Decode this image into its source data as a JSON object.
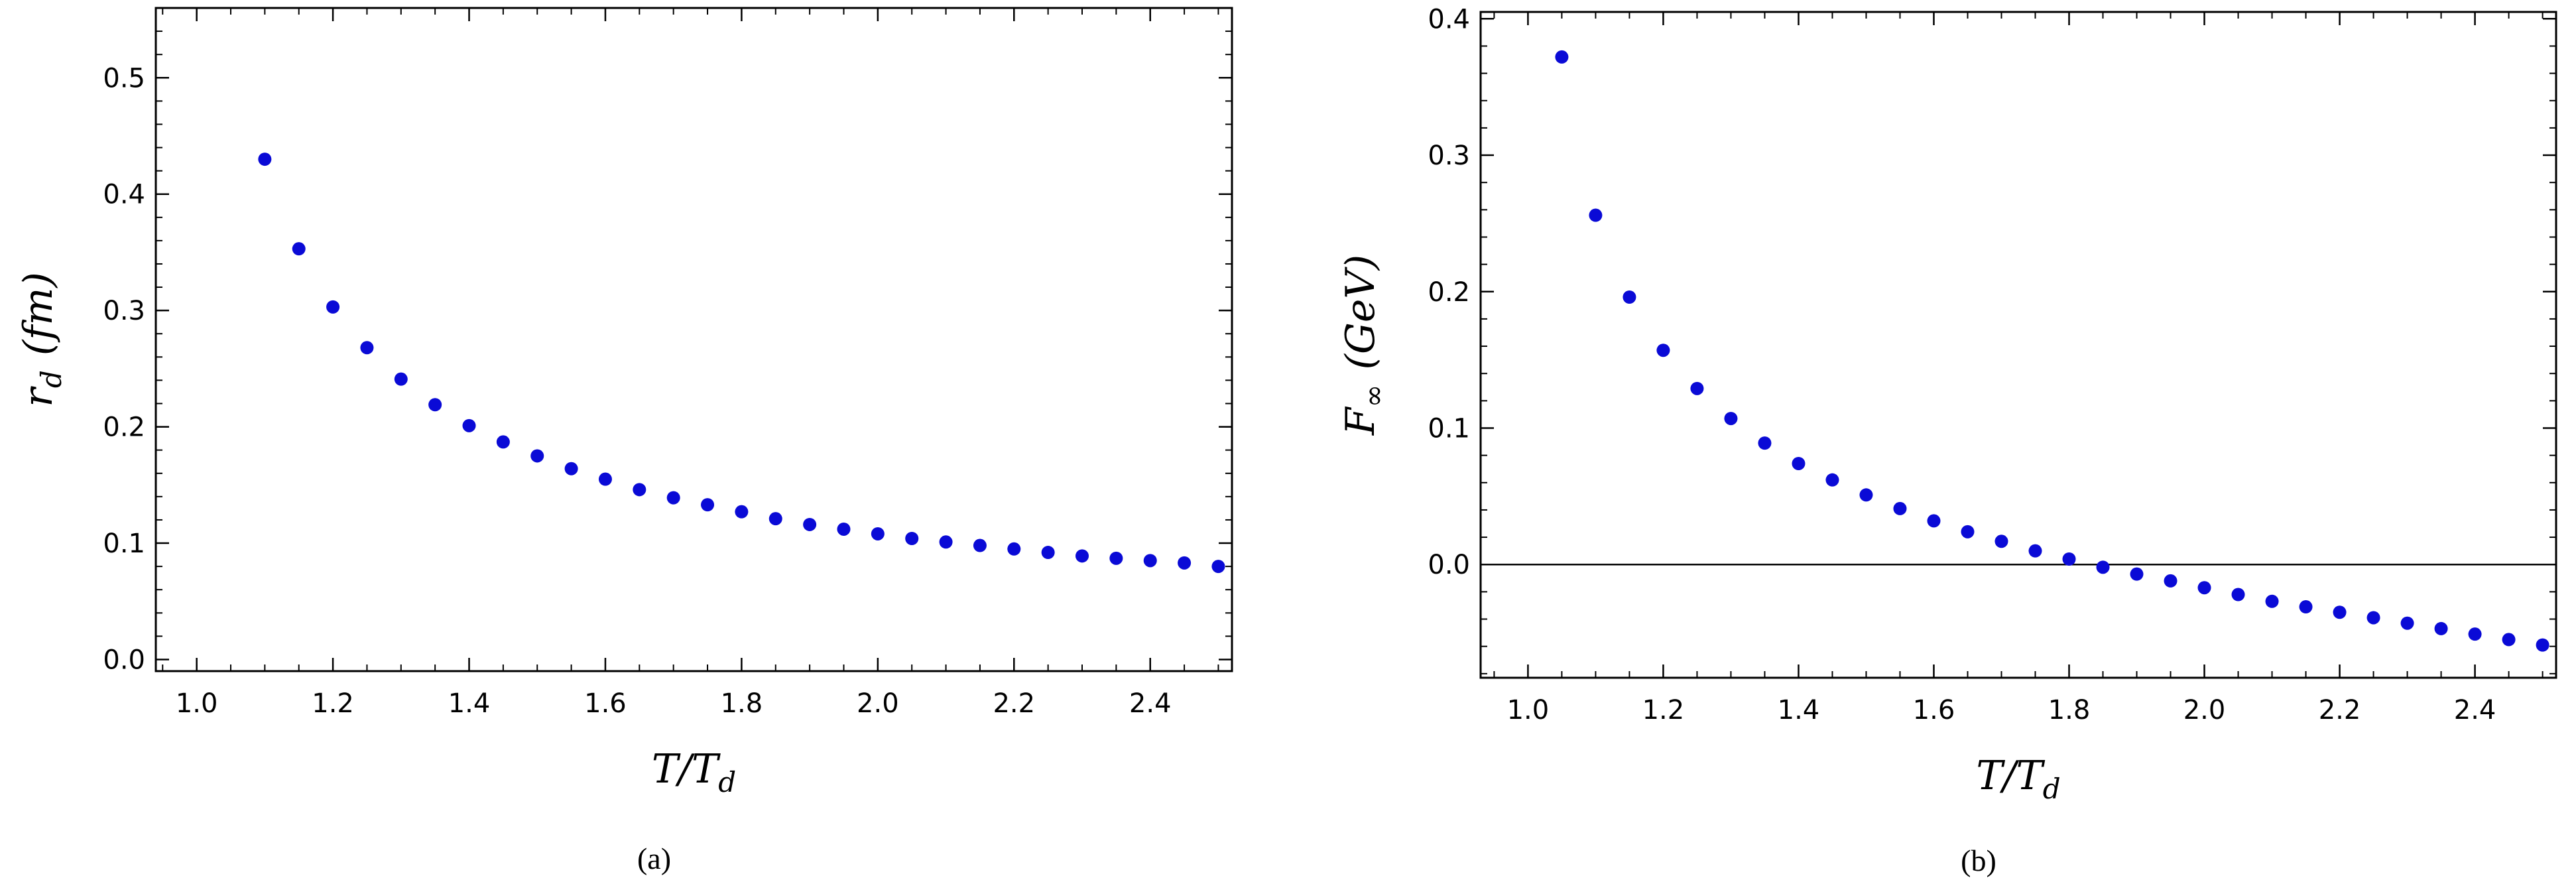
{
  "chart_data": [
    {
      "type": "scatter",
      "caption": "(a)",
      "x_label_main": "T/T",
      "x_label_sub": "d",
      "y_label_main": "r",
      "y_label_sub": "d",
      "y_label_unit": "(fm)",
      "xlim": [
        0.94,
        2.52
      ],
      "ylim": [
        -0.01,
        0.56
      ],
      "x_ticks": [
        {
          "value": 1.0,
          "label": "1.0"
        },
        {
          "value": 1.2,
          "label": "1.2"
        },
        {
          "value": 1.4,
          "label": "1.4"
        },
        {
          "value": 1.6,
          "label": "1.6"
        },
        {
          "value": 1.8,
          "label": "1.8"
        },
        {
          "value": 2.0,
          "label": "2.0"
        },
        {
          "value": 2.2,
          "label": "2.2"
        },
        {
          "value": 2.4,
          "label": "2.4"
        }
      ],
      "y_ticks": [
        {
          "value": 0.0,
          "label": "0.0"
        },
        {
          "value": 0.1,
          "label": "0.1"
        },
        {
          "value": 0.2,
          "label": "0.2"
        },
        {
          "value": 0.3,
          "label": "0.3"
        },
        {
          "value": 0.4,
          "label": "0.4"
        },
        {
          "value": 0.5,
          "label": "0.5"
        }
      ],
      "x_minor_step": 0.05,
      "y_minor_step": 0.02,
      "marker_color": "#0a0ad6",
      "zero_line": false,
      "points": {
        "x": [
          1.1,
          1.15,
          1.2,
          1.25,
          1.3,
          1.35,
          1.4,
          1.45,
          1.5,
          1.55,
          1.6,
          1.65,
          1.7,
          1.75,
          1.8,
          1.85,
          1.9,
          1.95,
          2.0,
          2.05,
          2.1,
          2.15,
          2.2,
          2.25,
          2.3,
          2.35,
          2.4,
          2.45,
          2.5
        ],
        "y": [
          0.43,
          0.353,
          0.303,
          0.268,
          0.241,
          0.219,
          0.201,
          0.187,
          0.175,
          0.164,
          0.155,
          0.146,
          0.139,
          0.133,
          0.127,
          0.121,
          0.116,
          0.112,
          0.108,
          0.104,
          0.101,
          0.098,
          0.095,
          0.092,
          0.089,
          0.087,
          0.085,
          0.083,
          0.08
        ]
      }
    },
    {
      "type": "scatter",
      "caption": "(b)",
      "x_label_main": "T/T",
      "x_label_sub": "d",
      "y_label_main": "F",
      "y_label_sub": "∞",
      "y_label_unit": "(GeV)",
      "xlim": [
        0.93,
        2.52
      ],
      "ylim": [
        -0.083,
        0.405
      ],
      "x_ticks": [
        {
          "value": 1.0,
          "label": "1.0"
        },
        {
          "value": 1.2,
          "label": "1.2"
        },
        {
          "value": 1.4,
          "label": "1.4"
        },
        {
          "value": 1.6,
          "label": "1.6"
        },
        {
          "value": 1.8,
          "label": "1.8"
        },
        {
          "value": 2.0,
          "label": "2.0"
        },
        {
          "value": 2.2,
          "label": "2.2"
        },
        {
          "value": 2.4,
          "label": "2.4"
        }
      ],
      "y_ticks": [
        {
          "value": 0.0,
          "label": "0.0"
        },
        {
          "value": 0.1,
          "label": "0.1"
        },
        {
          "value": 0.2,
          "label": "0.2"
        },
        {
          "value": 0.3,
          "label": "0.3"
        },
        {
          "value": 0.4,
          "label": "0.4"
        }
      ],
      "x_minor_step": 0.05,
      "y_minor_step": 0.02,
      "marker_color": "#0a0ad6",
      "zero_line": true,
      "points": {
        "x": [
          1.05,
          1.1,
          1.15,
          1.2,
          1.25,
          1.3,
          1.35,
          1.4,
          1.45,
          1.5,
          1.55,
          1.6,
          1.65,
          1.7,
          1.75,
          1.8,
          1.85,
          1.9,
          1.95,
          2.0,
          2.05,
          2.1,
          2.15,
          2.2,
          2.25,
          2.3,
          2.35,
          2.4,
          2.45,
          2.5
        ],
        "y": [
          0.372,
          0.256,
          0.196,
          0.157,
          0.129,
          0.107,
          0.089,
          0.074,
          0.062,
          0.051,
          0.041,
          0.032,
          0.024,
          0.017,
          0.01,
          0.004,
          -0.002,
          -0.007,
          -0.012,
          -0.017,
          -0.022,
          -0.027,
          -0.031,
          -0.035,
          -0.039,
          -0.043,
          -0.047,
          -0.051,
          -0.055,
          -0.059
        ]
      }
    }
  ]
}
